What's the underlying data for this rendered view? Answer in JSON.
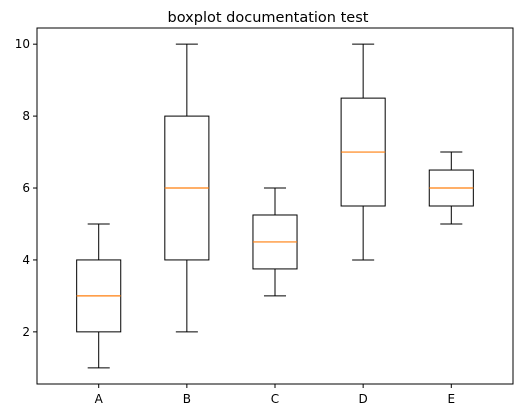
{
  "chart_data": {
    "type": "boxplot",
    "title": "boxplot documentation test",
    "xlabel": "",
    "ylabel": "",
    "ylim": [
      0.55,
      10.45
    ],
    "yticks": [
      2,
      4,
      6,
      8,
      10
    ],
    "grid": false,
    "categories": [
      "A",
      "B",
      "C",
      "D",
      "E"
    ],
    "boxes": [
      {
        "label": "A",
        "whisker_low": 1,
        "q1": 2,
        "median": 3,
        "q3": 4,
        "whisker_high": 5
      },
      {
        "label": "B",
        "whisker_low": 2,
        "q1": 4,
        "median": 6,
        "q3": 8,
        "whisker_high": 10
      },
      {
        "label": "C",
        "whisker_low": 3,
        "q1": 3.75,
        "median": 4.5,
        "q3": 5.25,
        "whisker_high": 6
      },
      {
        "label": "D",
        "whisker_low": 4,
        "q1": 5.5,
        "median": 7,
        "q3": 8.5,
        "whisker_high": 10
      },
      {
        "label": "E",
        "whisker_low": 5,
        "q1": 5.5,
        "median": 6,
        "q3": 6.5,
        "whisker_high": 7
      }
    ],
    "colors": {
      "box": "#000000",
      "median": "#ff7f0e",
      "axes": "#000000"
    }
  }
}
